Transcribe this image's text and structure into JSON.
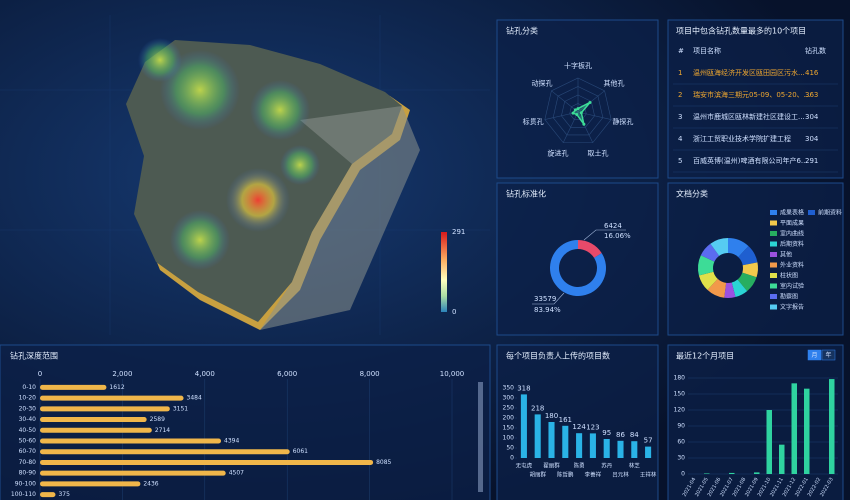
{
  "map_legend": {
    "max": 291,
    "min": 0
  },
  "table": {
    "title": "项目中包含钻孔数量最多的10个项目",
    "columns": [
      "#",
      "项目名称",
      "钻孔数"
    ],
    "rows": [
      [
        1,
        "温州瓯海经济开发区瓯田园区污水...",
        416
      ],
      [
        2,
        "瑞安市滨海三期元05-09、05-20、...",
        363
      ],
      [
        3,
        "温州市鹿城区瓯林新建社区建设工...",
        304
      ],
      [
        4,
        "浙江工贸职业技术学院扩建工程",
        304
      ],
      [
        5,
        "百威英博(温州)啤酒有限公司年产6...",
        291
      ]
    ]
  },
  "chart_data": [
    {
      "type": "radar",
      "title": "钻孔分类",
      "indicators": [
        "十字板孔",
        "其他孔",
        "静探孔",
        "取土孔",
        "旋进孔",
        "标贯孔",
        "动探孔"
      ],
      "values": [
        10,
        45,
        10,
        40,
        8,
        15,
        10
      ],
      "rlim": [
        0,
        100
      ],
      "color": "#3ddc97"
    },
    {
      "type": "donut",
      "title": "钻孔标准化",
      "values": [
        6424,
        33579
      ],
      "percent_labels": [
        "16.06%",
        "83.94%"
      ],
      "colors": [
        "#e84a6a",
        "#2f80ed"
      ]
    },
    {
      "type": "donut",
      "title": "文档分类",
      "categories": [
        "成果表格",
        "前期资料",
        "平面成果",
        "室内曲线",
        "后期资料",
        "其他",
        "外业资料",
        "柱状图",
        "室内试验",
        "勘察图",
        "文字报告"
      ],
      "values": [
        12,
        10,
        8,
        9,
        7,
        6,
        10,
        9,
        11,
        8,
        10
      ],
      "colors": [
        "#2f80ed",
        "#1f5fd0",
        "#f2c94c",
        "#27ae60",
        "#2bd4d4",
        "#9b51e0",
        "#f2994a",
        "#e0e04a",
        "#3ddc97",
        "#5b6cf0",
        "#56ccf2"
      ],
      "legend": "right"
    },
    {
      "type": "hbar",
      "title": "钻孔深度范围",
      "categories": [
        "0-10",
        "10-20",
        "20-30",
        "30-40",
        "40-50",
        "50-60",
        "60-70",
        "70-80",
        "80-90",
        "90-100",
        "100-110"
      ],
      "values": [
        1612,
        3484,
        3151,
        2589,
        2714,
        4394,
        6061,
        8085,
        4507,
        2436,
        375
      ],
      "xlim": [
        0,
        10000
      ],
      "xticks": [
        0,
        {
          "value": 2000,
          "label": "2,000"
        },
        {
          "value": 4000,
          "label": "4,000"
        },
        {
          "value": 6000,
          "label": "6,000"
        },
        {
          "value": 8000,
          "label": "8,000"
        },
        {
          "value": 10000,
          "label": "10,000"
        }
      ],
      "color": "#f0b64a"
    },
    {
      "type": "bar",
      "title": "每个项目负责人上传的项目数",
      "categories": [
        "无屯虎",
        "胡丽群",
        "翟丽群",
        "陈哲鹏",
        "陈勇",
        "李善祥",
        "苏丹",
        "吕元林",
        "林芝",
        "王祥林"
      ],
      "values": [
        318,
        218,
        180,
        161,
        124,
        123,
        95,
        86,
        84,
        57
      ],
      "ylim": [
        0,
        350
      ],
      "yticks": [
        0,
        50,
        100,
        150,
        200,
        250,
        300,
        350
      ],
      "color": "#2ab3e6",
      "value_labels_shown": true
    },
    {
      "type": "bar",
      "title": "最近12个月项目",
      "toggles": [
        "月",
        "年"
      ],
      "categories": [
        "2021-04",
        "2021-05",
        "2021-06",
        "2021-07",
        "2021-08",
        "2021-09",
        "2021-10",
        "2021-11",
        "2021-12",
        "2022-01",
        "2022-02",
        "2022-03"
      ],
      "values": [
        0,
        1,
        0,
        2,
        0,
        3,
        120,
        55,
        170,
        160,
        0,
        178
      ],
      "ylim": [
        0,
        180
      ],
      "yticks": [
        0,
        30,
        60,
        90,
        120,
        150,
        180
      ],
      "color": "#2fd3a0",
      "grid": true,
      "value_labels_shown": false
    }
  ]
}
